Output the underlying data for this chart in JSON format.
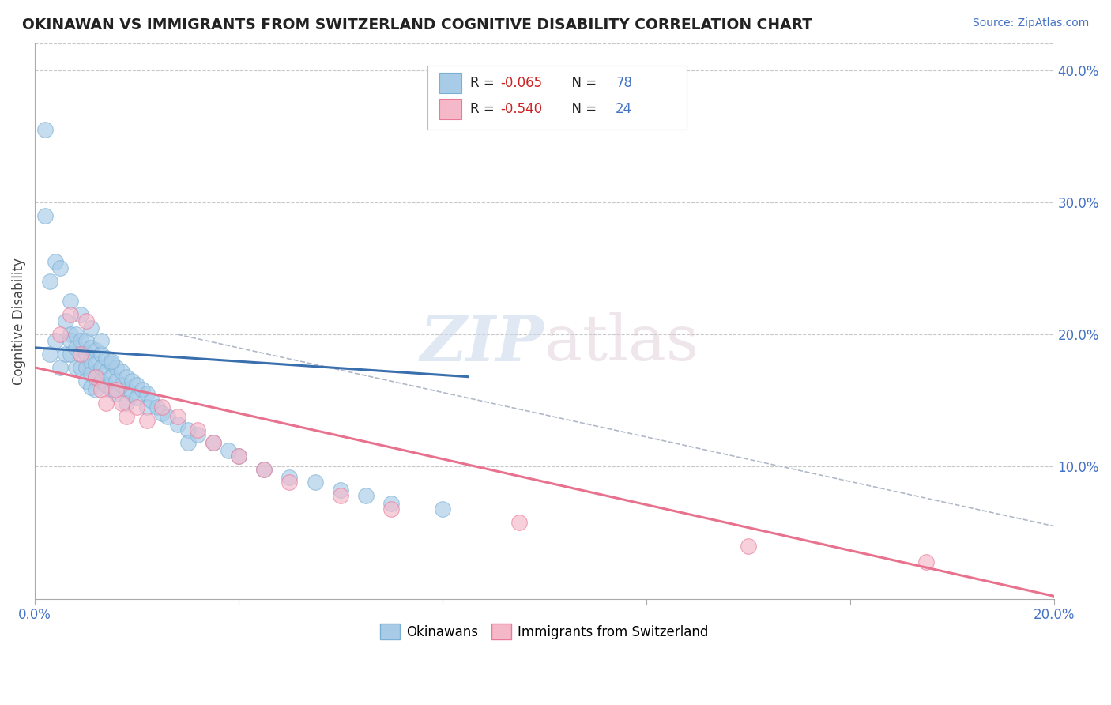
{
  "title": "OKINAWAN VS IMMIGRANTS FROM SWITZERLAND COGNITIVE DISABILITY CORRELATION CHART",
  "source": "Source: ZipAtlas.com",
  "ylabel_label": "Cognitive Disability",
  "xlim": [
    0.0,
    0.2
  ],
  "ylim": [
    0.0,
    0.42
  ],
  "y_ticks_right": [
    0.1,
    0.2,
    0.3,
    0.4
  ],
  "y_tick_right_labels": [
    "10.0%",
    "20.0%",
    "30.0%",
    "40.0%"
  ],
  "x_tick_positions": [
    0.0,
    0.04,
    0.08,
    0.12,
    0.16,
    0.2
  ],
  "x_tick_labels": [
    "0.0%",
    "",
    "",
    "",
    "",
    "20.0%"
  ],
  "legend_r1": "R = -0.065",
  "legend_n1": "N = 78",
  "legend_r2": "R = -0.540",
  "legend_n2": "N = 24",
  "okinawan_color": "#a8cce8",
  "okinawan_edge": "#7ab0d4",
  "swiss_color": "#f5b8c8",
  "swiss_edge": "#e87a98",
  "okinawan_line_color": "#3a6fae",
  "swiss_line_color": "#e8728e",
  "background_color": "#ffffff",
  "grid_color": "#c8c8c8",
  "okinawan_x": [
    0.002,
    0.003,
    0.004,
    0.005,
    0.006,
    0.006,
    0.007,
    0.007,
    0.007,
    0.008,
    0.008,
    0.008,
    0.009,
    0.009,
    0.009,
    0.01,
    0.01,
    0.01,
    0.01,
    0.011,
    0.011,
    0.011,
    0.011,
    0.012,
    0.012,
    0.012,
    0.012,
    0.013,
    0.013,
    0.013,
    0.014,
    0.014,
    0.014,
    0.015,
    0.015,
    0.015,
    0.016,
    0.016,
    0.016,
    0.017,
    0.017,
    0.018,
    0.018,
    0.018,
    0.019,
    0.019,
    0.02,
    0.02,
    0.021,
    0.022,
    0.022,
    0.023,
    0.024,
    0.025,
    0.026,
    0.028,
    0.03,
    0.03,
    0.032,
    0.035,
    0.038,
    0.04,
    0.045,
    0.05,
    0.055,
    0.06,
    0.065,
    0.07,
    0.08,
    0.002,
    0.003,
    0.004,
    0.005,
    0.007,
    0.009,
    0.011,
    0.013,
    0.015
  ],
  "okinawan_y": [
    0.355,
    0.185,
    0.195,
    0.175,
    0.21,
    0.185,
    0.2,
    0.195,
    0.185,
    0.2,
    0.19,
    0.175,
    0.195,
    0.185,
    0.175,
    0.195,
    0.185,
    0.175,
    0.165,
    0.19,
    0.18,
    0.17,
    0.16,
    0.188,
    0.178,
    0.168,
    0.158,
    0.185,
    0.175,
    0.165,
    0.182,
    0.172,
    0.162,
    0.178,
    0.168,
    0.158,
    0.175,
    0.165,
    0.155,
    0.172,
    0.162,
    0.168,
    0.158,
    0.148,
    0.165,
    0.155,
    0.162,
    0.152,
    0.158,
    0.155,
    0.145,
    0.15,
    0.145,
    0.14,
    0.138,
    0.132,
    0.128,
    0.118,
    0.124,
    0.118,
    0.112,
    0.108,
    0.098,
    0.092,
    0.088,
    0.082,
    0.078,
    0.072,
    0.068,
    0.29,
    0.24,
    0.255,
    0.25,
    0.225,
    0.215,
    0.205,
    0.195,
    0.18
  ],
  "swiss_x": [
    0.005,
    0.007,
    0.009,
    0.01,
    0.012,
    0.013,
    0.014,
    0.016,
    0.017,
    0.018,
    0.02,
    0.022,
    0.025,
    0.028,
    0.032,
    0.035,
    0.04,
    0.045,
    0.05,
    0.06,
    0.07,
    0.095,
    0.14,
    0.175
  ],
  "swiss_y": [
    0.2,
    0.215,
    0.185,
    0.21,
    0.168,
    0.158,
    0.148,
    0.158,
    0.148,
    0.138,
    0.145,
    0.135,
    0.145,
    0.138,
    0.128,
    0.118,
    0.108,
    0.098,
    0.088,
    0.078,
    0.068,
    0.058,
    0.04,
    0.028
  ],
  "ok_line_x0": 0.0,
  "ok_line_x1": 0.085,
  "ok_line_y0": 0.19,
  "ok_line_y1": 0.168,
  "sw_line_x0": 0.0,
  "sw_line_x1": 0.2,
  "sw_line_y0": 0.175,
  "sw_line_y1": 0.002,
  "dash_line_x0": 0.028,
  "dash_line_x1": 0.2,
  "dash_line_y0": 0.2,
  "dash_line_y1": 0.055
}
